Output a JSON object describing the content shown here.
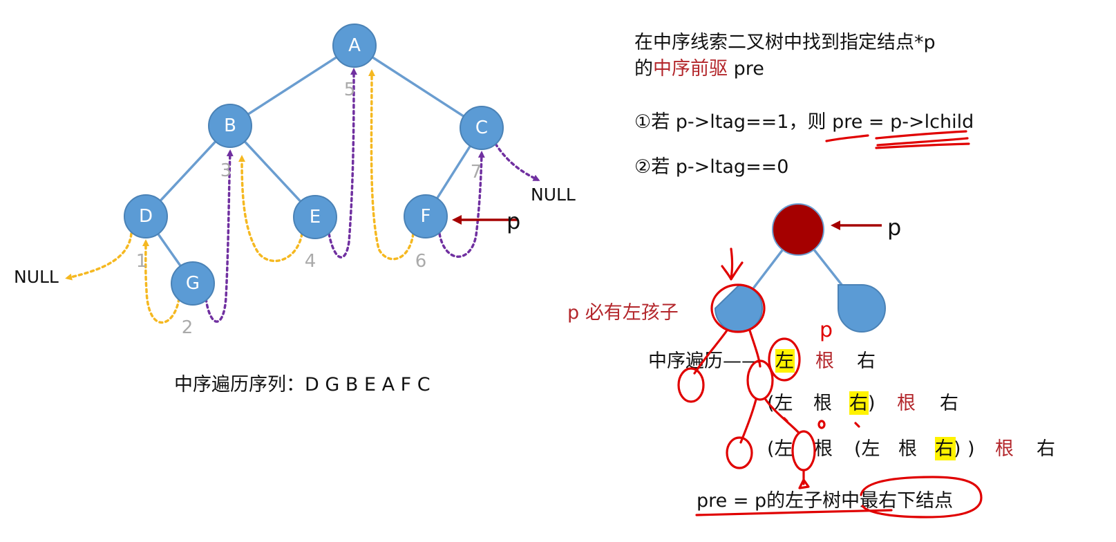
{
  "left": {
    "nodes": [
      "A",
      "B",
      "C",
      "D",
      "E",
      "F",
      "G"
    ],
    "order_numbers": [
      "1",
      "2",
      "3",
      "4",
      "5",
      "6",
      "7"
    ],
    "null_label": "NULL",
    "pointer_label": "p",
    "sequence_text": "中序遍历序列：D G B E A F C"
  },
  "right": {
    "title_line1": "在中序线索二叉树中找到指定结点*p",
    "title_line2_prefix": "的",
    "title_line2_red": "中序前驱",
    "title_line2_suffix": " pre",
    "case1_prefix": "①若 p->ltag==1，则 ",
    "case1_code": "pre = p->lchild",
    "case2": "②若 p->ltag==0",
    "pointer_label": "p",
    "left_child_note": "p 必有左孩子",
    "handwritten_p": "p",
    "row1_label": "中序遍历——",
    "row1": [
      "左",
      "根",
      "右"
    ],
    "row2": [
      "(左",
      "根",
      "右)",
      "根",
      "右"
    ],
    "row3": [
      "(左",
      "根",
      "(左",
      "根",
      "右)",
      ")",
      "根",
      "右"
    ],
    "conclusion": "pre = p的左子树中最右下结点"
  },
  "colors": {
    "node_fill": "#5b9bd5",
    "tree_edge": "#6a9dd0",
    "yellow_thread": "#f5b820",
    "purple_thread": "#7030a0",
    "dark_red_node": "#a50000",
    "text_red": "#b3262b",
    "highlight": "#fff200",
    "ink_red": "#e00000"
  }
}
